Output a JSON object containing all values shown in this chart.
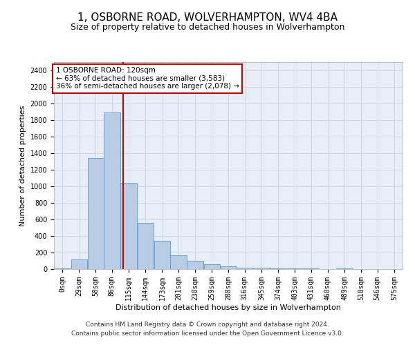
{
  "title": "1, OSBORNE ROAD, WOLVERHAMPTON, WV4 4BA",
  "subtitle": "Size of property relative to detached houses in Wolverhampton",
  "xlabel": "Distribution of detached houses by size in Wolverhampton",
  "ylabel": "Number of detached properties",
  "footer_line1": "Contains HM Land Registry data © Crown copyright and database right 2024.",
  "footer_line2": "Contains public sector information licensed under the Open Government Licence v3.0.",
  "annotation_line1": "1 OSBORNE ROAD: 120sqm",
  "annotation_line2": "← 63% of detached houses are smaller (3,583)",
  "annotation_line3": "36% of semi-detached houses are larger (2,078) →",
  "bar_color": "#b8cce4",
  "bar_edge_color": "#5b9bd5",
  "vline_color": "#cc0000",
  "vline_x": 120,
  "bin_width": 29,
  "bin_starts": [
    0,
    29,
    58,
    86,
    115,
    144,
    173,
    201,
    230,
    259,
    288,
    316,
    345,
    374,
    403,
    431,
    460,
    489,
    518,
    546,
    575
  ],
  "bin_labels": [
    "0sqm",
    "29sqm",
    "58sqm",
    "86sqm",
    "115sqm",
    "144sqm",
    "173sqm",
    "201sqm",
    "230sqm",
    "259sqm",
    "288sqm",
    "316sqm",
    "345sqm",
    "374sqm",
    "403sqm",
    "431sqm",
    "460sqm",
    "489sqm",
    "518sqm",
    "546sqm",
    "575sqm"
  ],
  "bar_heights": [
    10,
    120,
    1340,
    1890,
    1040,
    560,
    340,
    165,
    100,
    55,
    30,
    20,
    15,
    12,
    8,
    5,
    2,
    10,
    2,
    2,
    2
  ],
  "ylim": [
    0,
    2500
  ],
  "yticks": [
    0,
    200,
    400,
    600,
    800,
    1000,
    1200,
    1400,
    1600,
    1800,
    2000,
    2200,
    2400
  ],
  "background_color": "#ffffff",
  "plot_bg_color": "#e8eef8",
  "grid_color": "#d0d8e8",
  "annotation_box_color": "#ffffff",
  "annotation_box_edge": "#cc0000",
  "title_fontsize": 11,
  "subtitle_fontsize": 9,
  "axis_label_fontsize": 8,
  "tick_fontsize": 7,
  "annotation_fontsize": 7.5,
  "footer_fontsize": 6.5
}
